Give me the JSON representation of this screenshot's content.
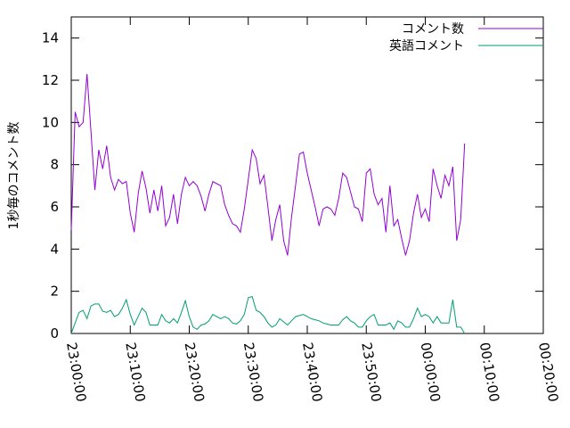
{
  "chart_data": {
    "type": "line",
    "title": "",
    "xlabel": "",
    "ylabel": "1秒毎のコメント数",
    "x_axis": {
      "min": "23:00:00",
      "max": "00:20:00",
      "ticks": [
        "23:00:00",
        "23:10:00",
        "23:20:00",
        "23:30:00",
        "23:40:00",
        "23:50:00",
        "00:00:00",
        "00:10:00",
        "00:20:00"
      ]
    },
    "ylim": [
      0,
      15
    ],
    "y_ticks": [
      "0",
      "2",
      "4",
      "6",
      "8",
      "10",
      "12",
      "14"
    ],
    "grid": false,
    "legend_position": "top-right",
    "series": [
      {
        "name": "コメント数",
        "color": "#9400d3",
        "points": [
          [
            "23:00:00",
            4.9
          ],
          [
            "23:00:40",
            10.5
          ],
          [
            "23:01:20",
            9.8
          ],
          [
            "23:02:00",
            10.0
          ],
          [
            "23:02:40",
            12.3
          ],
          [
            "23:03:20",
            9.6
          ],
          [
            "23:04:00",
            6.8
          ],
          [
            "23:04:40",
            8.7
          ],
          [
            "23:05:20",
            7.8
          ],
          [
            "23:06:00",
            8.9
          ],
          [
            "23:06:40",
            7.4
          ],
          [
            "23:07:20",
            6.8
          ],
          [
            "23:08:00",
            7.3
          ],
          [
            "23:08:40",
            7.1
          ],
          [
            "23:09:20",
            7.2
          ],
          [
            "23:10:00",
            5.7
          ],
          [
            "23:10:40",
            4.8
          ],
          [
            "23:11:20",
            6.6
          ],
          [
            "23:12:00",
            7.7
          ],
          [
            "23:12:40",
            6.9
          ],
          [
            "23:13:20",
            5.7
          ],
          [
            "23:14:00",
            6.8
          ],
          [
            "23:14:40",
            5.8
          ],
          [
            "23:15:20",
            7.0
          ],
          [
            "23:16:00",
            5.1
          ],
          [
            "23:16:40",
            5.5
          ],
          [
            "23:17:20",
            6.6
          ],
          [
            "23:18:00",
            5.2
          ],
          [
            "23:18:40",
            6.6
          ],
          [
            "23:19:20",
            7.4
          ],
          [
            "23:20:00",
            7.0
          ],
          [
            "23:20:40",
            7.2
          ],
          [
            "23:21:20",
            7.0
          ],
          [
            "23:22:00",
            6.5
          ],
          [
            "23:22:40",
            5.8
          ],
          [
            "23:23:20",
            6.6
          ],
          [
            "23:24:00",
            7.2
          ],
          [
            "23:24:40",
            7.1
          ],
          [
            "23:25:20",
            7.0
          ],
          [
            "23:26:00",
            6.1
          ],
          [
            "23:26:40",
            5.6
          ],
          [
            "23:27:20",
            5.2
          ],
          [
            "23:28:00",
            5.1
          ],
          [
            "23:28:40",
            4.8
          ],
          [
            "23:29:20",
            5.9
          ],
          [
            "23:30:00",
            7.3
          ],
          [
            "23:30:40",
            8.7
          ],
          [
            "23:31:20",
            8.3
          ],
          [
            "23:32:00",
            7.1
          ],
          [
            "23:32:40",
            7.5
          ],
          [
            "23:33:20",
            6.0
          ],
          [
            "23:34:00",
            4.4
          ],
          [
            "23:34:40",
            5.4
          ],
          [
            "23:35:20",
            6.1
          ],
          [
            "23:36:00",
            4.4
          ],
          [
            "23:36:40",
            3.7
          ],
          [
            "23:37:20",
            5.5
          ],
          [
            "23:38:00",
            7.0
          ],
          [
            "23:38:40",
            8.5
          ],
          [
            "23:39:20",
            8.6
          ],
          [
            "23:40:00",
            7.6
          ],
          [
            "23:40:40",
            6.8
          ],
          [
            "23:41:20",
            6.0
          ],
          [
            "23:42:00",
            5.1
          ],
          [
            "23:42:40",
            5.9
          ],
          [
            "23:43:20",
            6.0
          ],
          [
            "23:44:00",
            5.9
          ],
          [
            "23:44:40",
            5.6
          ],
          [
            "23:45:20",
            6.4
          ],
          [
            "23:46:00",
            7.6
          ],
          [
            "23:46:40",
            7.4
          ],
          [
            "23:47:20",
            6.7
          ],
          [
            "23:48:00",
            6.0
          ],
          [
            "23:48:40",
            5.9
          ],
          [
            "23:49:20",
            5.3
          ],
          [
            "23:50:00",
            7.6
          ],
          [
            "23:50:40",
            7.8
          ],
          [
            "23:51:20",
            6.6
          ],
          [
            "23:52:00",
            6.1
          ],
          [
            "23:52:40",
            6.4
          ],
          [
            "23:53:20",
            4.8
          ],
          [
            "23:54:00",
            7.0
          ],
          [
            "23:54:40",
            5.1
          ],
          [
            "23:55:20",
            5.4
          ],
          [
            "23:56:00",
            4.5
          ],
          [
            "23:56:40",
            3.7
          ],
          [
            "23:57:20",
            4.4
          ],
          [
            "23:58:00",
            5.7
          ],
          [
            "23:58:40",
            6.6
          ],
          [
            "23:59:20",
            5.5
          ],
          [
            "00:00:00",
            5.9
          ],
          [
            "00:00:40",
            5.3
          ],
          [
            "00:01:20",
            7.8
          ],
          [
            "00:02:00",
            7.0
          ],
          [
            "00:02:40",
            6.4
          ],
          [
            "00:03:20",
            7.5
          ],
          [
            "00:04:00",
            7.0
          ],
          [
            "00:04:40",
            7.9
          ],
          [
            "00:05:20",
            4.4
          ],
          [
            "00:06:00",
            5.4
          ],
          [
            "00:06:40",
            9.0
          ]
        ]
      },
      {
        "name": "英語コメント",
        "color": "#009e73",
        "points": [
          [
            "23:00:00",
            0.0
          ],
          [
            "23:00:40",
            0.5
          ],
          [
            "23:01:20",
            1.0
          ],
          [
            "23:02:00",
            1.1
          ],
          [
            "23:02:40",
            0.7
          ],
          [
            "23:03:20",
            1.3
          ],
          [
            "23:04:00",
            1.4
          ],
          [
            "23:04:40",
            1.4
          ],
          [
            "23:05:20",
            1.05
          ],
          [
            "23:06:00",
            1.0
          ],
          [
            "23:06:40",
            1.1
          ],
          [
            "23:07:20",
            0.8
          ],
          [
            "23:08:00",
            0.9
          ],
          [
            "23:08:40",
            1.2
          ],
          [
            "23:09:20",
            1.6
          ],
          [
            "23:10:00",
            0.9
          ],
          [
            "23:10:40",
            0.4
          ],
          [
            "23:11:20",
            0.8
          ],
          [
            "23:12:00",
            1.2
          ],
          [
            "23:12:40",
            1.0
          ],
          [
            "23:13:20",
            0.4
          ],
          [
            "23:14:00",
            0.4
          ],
          [
            "23:14:40",
            0.4
          ],
          [
            "23:15:20",
            0.9
          ],
          [
            "23:16:00",
            0.6
          ],
          [
            "23:16:40",
            0.5
          ],
          [
            "23:17:20",
            0.7
          ],
          [
            "23:18:00",
            0.5
          ],
          [
            "23:18:40",
            1.0
          ],
          [
            "23:19:20",
            1.55
          ],
          [
            "23:20:00",
            0.8
          ],
          [
            "23:20:40",
            0.3
          ],
          [
            "23:21:20",
            0.2
          ],
          [
            "23:22:00",
            0.4
          ],
          [
            "23:22:40",
            0.45
          ],
          [
            "23:23:20",
            0.6
          ],
          [
            "23:24:00",
            0.9
          ],
          [
            "23:24:40",
            0.8
          ],
          [
            "23:25:20",
            0.7
          ],
          [
            "23:26:00",
            0.8
          ],
          [
            "23:26:40",
            0.7
          ],
          [
            "23:27:20",
            0.5
          ],
          [
            "23:28:00",
            0.45
          ],
          [
            "23:28:40",
            0.6
          ],
          [
            "23:29:20",
            0.9
          ],
          [
            "23:30:00",
            1.7
          ],
          [
            "23:30:40",
            1.75
          ],
          [
            "23:31:20",
            1.1
          ],
          [
            "23:32:00",
            1.0
          ],
          [
            "23:32:40",
            0.8
          ],
          [
            "23:33:20",
            0.5
          ],
          [
            "23:34:00",
            0.3
          ],
          [
            "23:34:40",
            0.4
          ],
          [
            "23:35:20",
            0.7
          ],
          [
            "23:36:00",
            0.55
          ],
          [
            "23:36:40",
            0.4
          ],
          [
            "23:37:20",
            0.6
          ],
          [
            "23:38:00",
            0.8
          ],
          [
            "23:38:40",
            0.85
          ],
          [
            "23:39:20",
            0.9
          ],
          [
            "23:40:00",
            0.8
          ],
          [
            "23:40:40",
            0.7
          ],
          [
            "23:41:20",
            0.65
          ],
          [
            "23:42:00",
            0.6
          ],
          [
            "23:42:40",
            0.5
          ],
          [
            "23:43:20",
            0.45
          ],
          [
            "23:44:00",
            0.4
          ],
          [
            "23:44:40",
            0.4
          ],
          [
            "23:45:20",
            0.4
          ],
          [
            "23:46:00",
            0.65
          ],
          [
            "23:46:40",
            0.8
          ],
          [
            "23:47:20",
            0.6
          ],
          [
            "23:48:00",
            0.5
          ],
          [
            "23:48:40",
            0.3
          ],
          [
            "23:49:20",
            0.3
          ],
          [
            "23:50:00",
            0.6
          ],
          [
            "23:50:40",
            0.8
          ],
          [
            "23:51:20",
            0.9
          ],
          [
            "23:52:00",
            0.4
          ],
          [
            "23:52:40",
            0.4
          ],
          [
            "23:53:20",
            0.4
          ],
          [
            "23:54:00",
            0.5
          ],
          [
            "23:54:40",
            0.2
          ],
          [
            "23:55:20",
            0.6
          ],
          [
            "23:56:00",
            0.5
          ],
          [
            "23:56:40",
            0.3
          ],
          [
            "23:57:20",
            0.3
          ],
          [
            "23:58:00",
            0.7
          ],
          [
            "23:58:40",
            1.2
          ],
          [
            "23:59:20",
            0.8
          ],
          [
            "00:00:00",
            0.9
          ],
          [
            "00:00:40",
            0.8
          ],
          [
            "00:01:20",
            0.5
          ],
          [
            "00:02:00",
            0.8
          ],
          [
            "00:02:40",
            0.5
          ],
          [
            "00:03:20",
            0.5
          ],
          [
            "00:04:00",
            0.5
          ],
          [
            "00:04:40",
            1.6
          ],
          [
            "00:05:20",
            0.3
          ],
          [
            "00:06:00",
            0.3
          ],
          [
            "00:06:40",
            0.0
          ]
        ]
      }
    ]
  }
}
